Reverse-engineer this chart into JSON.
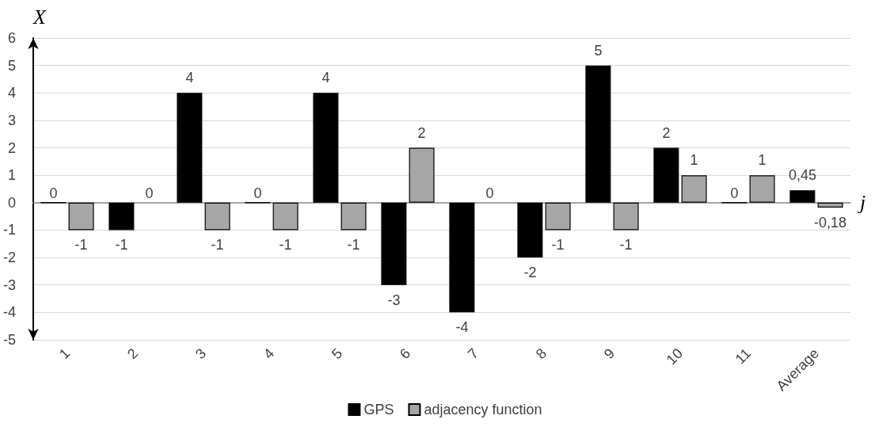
{
  "chart_data": {
    "type": "bar",
    "xlabel": "j",
    "ylabel": "X",
    "categories": [
      "1",
      "2",
      "3",
      "4",
      "5",
      "6",
      "7",
      "8",
      "9",
      "10",
      "11",
      "Average"
    ],
    "series": [
      {
        "name": "GPS",
        "color": "#000000",
        "values": [
          0,
          -1,
          4,
          0,
          4,
          -3,
          -4,
          -2,
          5,
          2,
          0,
          0.45
        ],
        "value_labels": [
          "0",
          "-1",
          "4",
          "0",
          "4",
          "-3",
          "-4",
          "-2",
          "5",
          "2",
          "0",
          "0,45"
        ]
      },
      {
        "name": "adjacency function",
        "color": "#a6a6a6",
        "values": [
          -1,
          0,
          -1,
          -1,
          -1,
          2,
          0,
          -1,
          -1,
          1,
          1,
          -0.18
        ],
        "value_labels": [
          "-1",
          "0",
          "-1",
          "-1",
          "-1",
          "2",
          "0",
          "-1",
          "-1",
          "1",
          "1",
          "-0,18"
        ]
      }
    ],
    "ylim": [
      -5,
      6
    ],
    "yticks": [
      -5,
      -4,
      -3,
      -2,
      -1,
      0,
      1,
      2,
      3,
      4,
      5,
      6
    ],
    "grid": "y",
    "legend": "bottom"
  }
}
